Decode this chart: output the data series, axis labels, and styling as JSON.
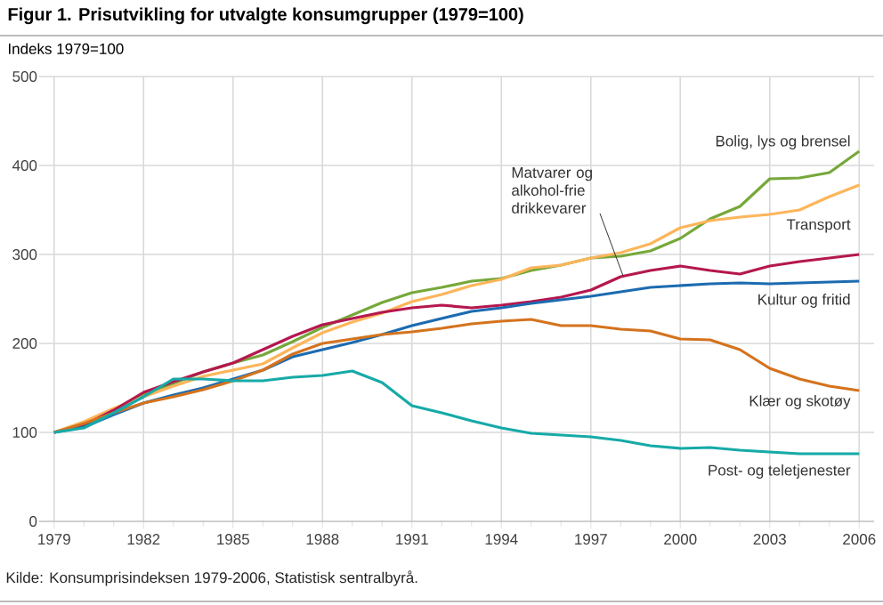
{
  "chart_data": {
    "type": "line",
    "title": "Figur 1.   Prisutvikling for utvalgte  konsumgrupper (1979=100)",
    "ylabel": "Indeks 1979=100",
    "annotations": [
      "Kilde: Konsumprisindeksen 1979-2006, Statistisk sentralbyrå."
    ],
    "x": [
      1979,
      1980,
      1981,
      1982,
      1983,
      1984,
      1985,
      1986,
      1987,
      1988,
      1989,
      1990,
      1991,
      1992,
      1993,
      1994,
      1995,
      1996,
      1997,
      1998,
      1999,
      2000,
      2001,
      2002,
      2003,
      2004,
      2005,
      2006
    ],
    "series": [
      {
        "name": "Bolig, lys og brensel",
        "color": "#76a83a",
        "values": [
          100,
          110,
          125,
          143,
          155,
          168,
          178,
          187,
          202,
          218,
          232,
          246,
          257,
          263,
          270,
          273,
          282,
          288,
          296,
          298,
          304,
          318,
          340,
          354,
          385,
          386,
          392,
          416
        ]
      },
      {
        "name": "Transport",
        "color": "#fdb55a",
        "values": [
          100,
          112,
          127,
          140,
          152,
          163,
          170,
          177,
          195,
          212,
          224,
          234,
          247,
          255,
          265,
          272,
          285,
          288,
          296,
          302,
          312,
          330,
          338,
          342,
          345,
          350,
          365,
          378
        ]
      },
      {
        "name": "Matvarer og alkohol-frie drikkevarer",
        "color": "#b5174f",
        "values": [
          100,
          108,
          125,
          145,
          157,
          168,
          178,
          193,
          208,
          221,
          228,
          235,
          240,
          243,
          240,
          243,
          247,
          252,
          260,
          275,
          282,
          287,
          282,
          278,
          287,
          292,
          296,
          300
        ]
      },
      {
        "name": "Kultur og fritid",
        "color": "#1c6bb0",
        "values": [
          100,
          106,
          120,
          133,
          142,
          150,
          160,
          170,
          185,
          193,
          201,
          210,
          220,
          228,
          236,
          240,
          245,
          249,
          253,
          258,
          263,
          265,
          267,
          268,
          267,
          268,
          269,
          270
        ]
      },
      {
        "name": "Klær og skotøy",
        "color": "#d4731e",
        "values": [
          100,
          110,
          122,
          133,
          140,
          148,
          158,
          170,
          188,
          200,
          205,
          210,
          213,
          217,
          222,
          225,
          227,
          220,
          220,
          216,
          214,
          205,
          204,
          193,
          172,
          160,
          152,
          147
        ]
      },
      {
        "name": "Post- og teletjenester",
        "color": "#16aaa8",
        "values": [
          100,
          105,
          122,
          140,
          160,
          160,
          158,
          158,
          162,
          164,
          169,
          156,
          130,
          122,
          113,
          105,
          99,
          97,
          95,
          91,
          85,
          82,
          83,
          80,
          78,
          76,
          76,
          76
        ]
      }
    ],
    "xlim": [
      1978.5,
      2006.5
    ],
    "xticks": [
      1979,
      1982,
      1985,
      1988,
      1991,
      1994,
      1997,
      2000,
      2003,
      2006
    ],
    "ylim": [
      0,
      500
    ],
    "yticks": [
      0,
      100,
      200,
      300,
      400,
      500
    ],
    "grid": true,
    "marker": "none",
    "line_style": "solid"
  }
}
